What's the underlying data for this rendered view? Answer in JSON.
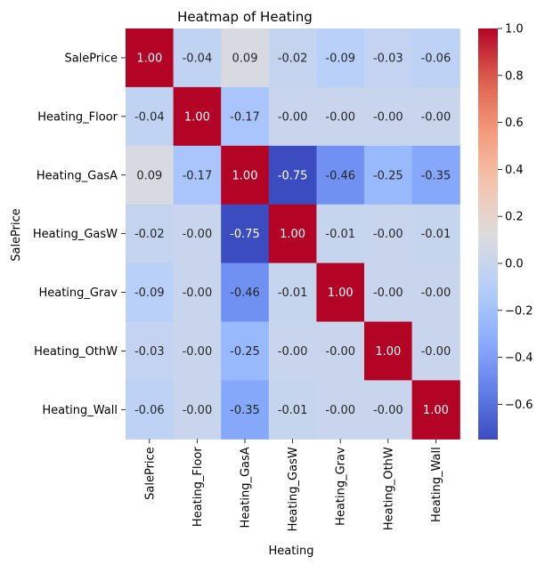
{
  "chart_data": {
    "type": "heatmap",
    "title": "Heatmap of Heating",
    "xlabel": "Heating",
    "ylabel": "SalePrice",
    "colormap": "coolwarm",
    "vmin": -0.75,
    "vmax": 1.0,
    "x_categories": [
      "SalePrice",
      "Heating_Floor",
      "Heating_GasA",
      "Heating_GasW",
      "Heating_Grav",
      "Heating_OthW",
      "Heating_Wall"
    ],
    "y_categories": [
      "SalePrice",
      "Heating_Floor",
      "Heating_GasA",
      "Heating_GasW",
      "Heating_Grav",
      "Heating_OthW",
      "Heating_Wall"
    ],
    "matrix": [
      [
        1.0,
        -0.04,
        0.09,
        -0.02,
        -0.09,
        -0.03,
        -0.06
      ],
      [
        -0.04,
        1.0,
        -0.17,
        -0.0,
        -0.0,
        -0.0,
        -0.0
      ],
      [
        0.09,
        -0.17,
        1.0,
        -0.75,
        -0.46,
        -0.25,
        -0.35
      ],
      [
        -0.02,
        -0.0,
        -0.75,
        1.0,
        -0.01,
        -0.0,
        -0.01
      ],
      [
        -0.09,
        -0.0,
        -0.46,
        -0.01,
        1.0,
        -0.0,
        -0.0
      ],
      [
        -0.03,
        -0.0,
        -0.25,
        -0.0,
        -0.0,
        1.0,
        -0.0
      ],
      [
        -0.06,
        -0.0,
        -0.35,
        -0.01,
        -0.0,
        -0.0,
        1.0
      ]
    ],
    "labels": [
      [
        "1.00",
        "-0.04",
        "0.09",
        "-0.02",
        "-0.09",
        "-0.03",
        "-0.06"
      ],
      [
        "-0.04",
        "1.00",
        "-0.17",
        "-0.00",
        "-0.00",
        "-0.00",
        "-0.00"
      ],
      [
        "0.09",
        "-0.17",
        "1.00",
        "-0.75",
        "-0.46",
        "-0.25",
        "-0.35"
      ],
      [
        "-0.02",
        "-0.00",
        "-0.75",
        "1.00",
        "-0.01",
        "-0.00",
        "-0.01"
      ],
      [
        "-0.09",
        "-0.00",
        "-0.46",
        "-0.01",
        "1.00",
        "-0.00",
        "-0.00"
      ],
      [
        "-0.03",
        "-0.00",
        "-0.25",
        "-0.00",
        "-0.00",
        "1.00",
        "-0.00"
      ],
      [
        "-0.06",
        "-0.00",
        "-0.35",
        "-0.01",
        "-0.00",
        "-0.00",
        "1.00"
      ]
    ],
    "colorbar_ticks": [
      1.0,
      0.8,
      0.6,
      0.4,
      0.2,
      0.0,
      -0.2,
      -0.4,
      -0.6
    ],
    "colorbar_tick_labels": [
      "1.0",
      "0.8",
      "0.6",
      "0.4",
      "0.2",
      "0.0",
      "−0.2",
      "−0.4",
      "−0.6"
    ]
  }
}
